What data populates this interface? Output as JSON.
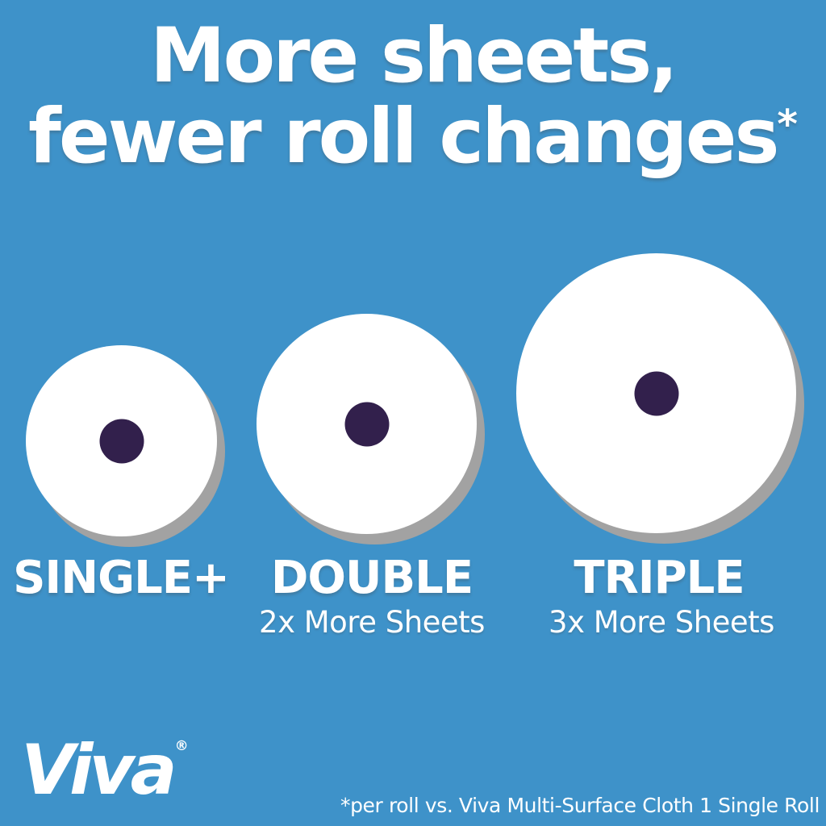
{
  "headline": {
    "line1": "More sheets,",
    "line2": "fewer roll changes",
    "asterisk": "*"
  },
  "rolls": [
    {
      "label": "SINGLE+",
      "size": "small"
    },
    {
      "label": "DOUBLE",
      "sublabel": "2x More Sheets",
      "size": "medium"
    },
    {
      "label": "TRIPLE",
      "sublabel": "3x More Sheets",
      "size": "large"
    }
  ],
  "brand": {
    "logo_text": "Viva",
    "registered_mark": "®"
  },
  "footnote": "*per roll vs. Viva Multi-Surface Cloth 1 Single Roll",
  "colors": {
    "background": "#3e92c9",
    "roll_white": "#ffffff",
    "core_purple": "#32204c",
    "shadow_gray": "#a2a2a2",
    "text_white": "#ffffff"
  }
}
